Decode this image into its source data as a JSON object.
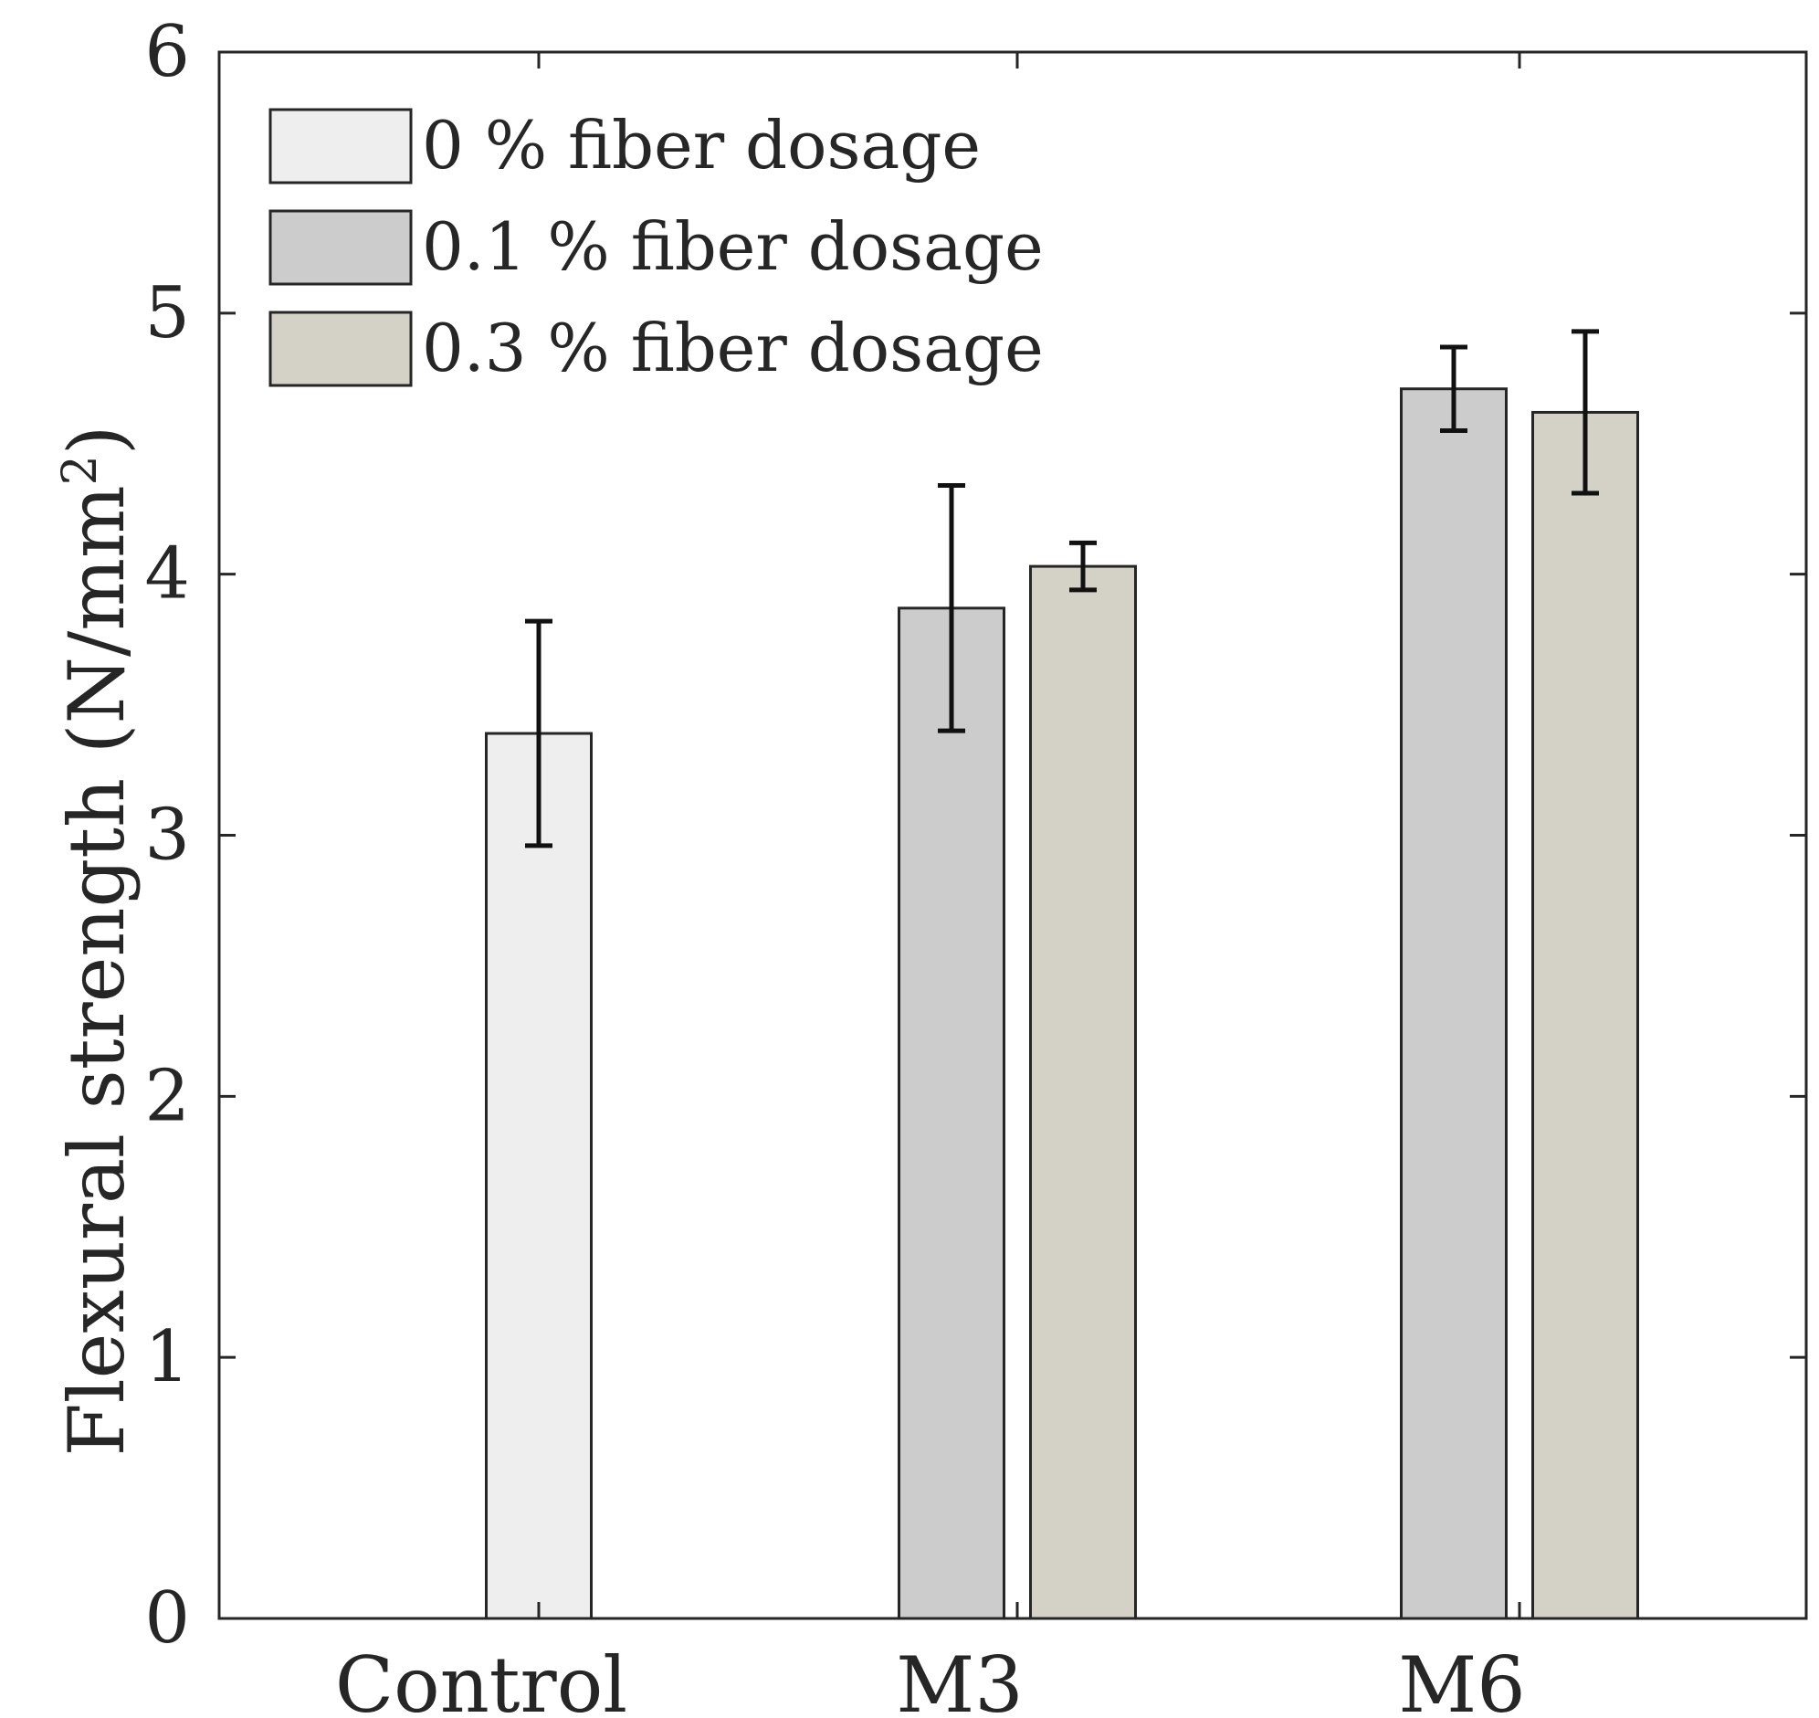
{
  "chart_data": {
    "type": "bar",
    "title": "",
    "xlabel": "",
    "ylabel": "Flexural strength (N/mm",
    "ylabel_superscript": "2",
    "ylabel_suffix": ")",
    "ylim": [
      0,
      6
    ],
    "yticks": [
      "0",
      "1",
      "2",
      "3",
      "4",
      "5",
      "6"
    ],
    "grid": false,
    "legend_position": "top-left",
    "categories": [
      "Control",
      "M3",
      "M6"
    ],
    "series": [
      {
        "name": "0 % fiber dosage",
        "color": "#eeeeee",
        "values": [
          3.39,
          null,
          null
        ],
        "errors": [
          0.43,
          null,
          null
        ]
      },
      {
        "name": "0.1 % fiber dosage",
        "color": "#cccccc",
        "values": [
          null,
          3.87,
          4.71
        ],
        "errors": [
          null,
          0.47,
          0.16
        ]
      },
      {
        "name": "0.3 % fiber dosage",
        "color": "#d4d2c6",
        "values": [
          null,
          4.03,
          4.62
        ],
        "errors": [
          null,
          0.09,
          0.31
        ]
      }
    ]
  }
}
